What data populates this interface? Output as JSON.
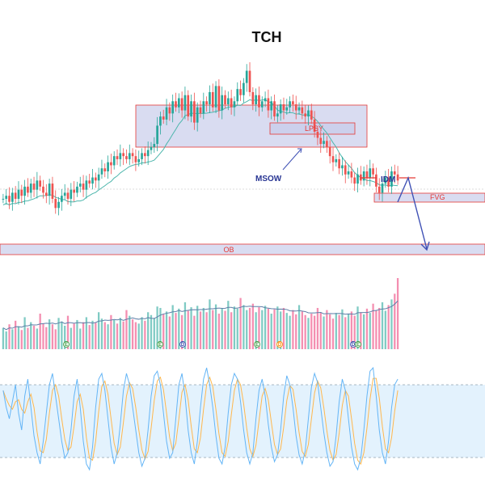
{
  "chart_data": {
    "type": "candlestick",
    "title": "TCH",
    "colors": {
      "up": "#26a69a",
      "down": "#ef5350",
      "ma_line": "#4db6ac",
      "zone_fill": "#c5cae9",
      "zone_border": "#e53935",
      "arrow": "#3f51b5",
      "label_blue": "#283593",
      "label_red": "#e53935",
      "stoch_band": "#e3f2fd",
      "stoch_k": "#64b5f6",
      "stoch_d": "#ffb74d",
      "volume_ma": "#5e7fa8"
    },
    "price_axis_range": [
      0,
      100
    ],
    "closes": [
      58,
      59,
      57,
      60,
      58,
      61,
      59,
      62,
      60,
      63,
      61,
      64,
      62,
      60,
      59,
      63,
      58,
      55,
      57,
      59,
      60,
      58,
      61,
      60,
      62,
      63,
      61,
      64,
      63,
      65,
      64,
      66,
      68,
      67,
      70,
      69,
      72,
      71,
      73,
      72,
      71,
      73,
      72,
      70,
      71,
      73,
      72,
      74,
      75,
      76,
      82,
      85,
      84,
      88,
      86,
      90,
      88,
      91,
      87,
      92,
      85,
      90,
      83,
      88,
      86,
      90,
      89,
      93,
      88,
      95,
      87,
      92,
      89,
      91,
      88,
      90,
      94,
      92,
      96,
      100,
      93,
      89,
      92,
      88,
      90,
      91,
      87,
      90,
      85,
      86,
      89,
      87,
      88,
      90,
      89,
      87,
      88,
      86,
      85,
      87,
      84,
      80,
      78,
      76,
      77,
      75,
      72,
      70,
      71,
      68,
      69,
      66,
      67,
      65,
      63,
      66,
      64,
      67,
      65,
      68,
      66,
      62,
      60,
      63,
      65,
      62,
      67,
      66,
      64
    ],
    "volume": [
      30,
      25,
      35,
      28,
      40,
      32,
      27,
      45,
      30,
      38,
      33,
      29,
      50,
      36,
      31,
      42,
      35,
      28,
      44,
      39,
      33,
      47,
      30,
      36,
      41,
      29,
      38,
      45,
      34,
      40,
      37,
      52,
      43,
      38,
      35,
      48,
      41,
      36,
      44,
      39,
      55,
      47,
      42,
      38,
      36,
      45,
      40,
      52,
      48,
      44,
      60,
      58,
      49,
      53,
      46,
      62,
      51,
      57,
      48,
      66,
      54,
      59,
      47,
      61,
      53,
      58,
      52,
      70,
      55,
      63,
      50,
      58,
      54,
      68,
      52,
      60,
      57,
      72,
      62,
      55,
      58,
      64,
      52,
      59,
      55,
      61,
      57,
      50,
      56,
      60,
      53,
      58,
      51,
      47,
      55,
      49,
      62,
      53,
      48,
      44,
      50,
      47,
      58,
      52,
      46,
      55,
      49,
      43,
      51,
      48,
      56,
      45,
      50,
      53,
      47,
      60,
      52,
      49,
      57,
      51,
      64,
      55,
      58,
      66,
      54,
      62,
      70,
      78,
      100
    ],
    "volume_markers": [
      "E",
      "E",
      "D",
      "E",
      "D",
      "D",
      "E"
    ],
    "stoch_k": [
      75,
      60,
      50,
      65,
      80,
      55,
      40,
      70,
      85,
      60,
      35,
      20,
      10,
      30,
      55,
      80,
      90,
      70,
      50,
      30,
      15,
      20,
      40,
      70,
      85,
      60,
      30,
      10,
      5,
      25,
      60,
      85,
      90,
      75,
      50,
      25,
      10,
      20,
      45,
      75,
      90,
      80,
      60,
      40,
      20,
      8,
      15,
      40,
      70,
      88,
      92,
      80,
      55,
      30,
      15,
      20,
      50,
      80,
      90,
      70,
      40,
      20,
      10,
      30,
      60,
      85,
      95,
      80,
      60,
      35,
      15,
      10,
      25,
      55,
      80,
      90,
      85,
      65,
      40,
      20,
      10,
      20,
      50,
      75,
      85,
      70,
      45,
      25,
      12,
      18,
      40,
      70,
      88,
      80,
      60,
      35,
      18,
      10,
      22,
      50,
      78,
      90,
      82,
      60,
      38,
      20,
      8,
      12,
      35,
      65,
      85,
      75,
      50,
      25,
      10,
      5,
      15,
      40,
      70,
      92,
      95,
      70,
      40,
      20,
      10,
      30,
      60,
      80,
      85
    ],
    "stoch_levels": [
      80,
      20
    ],
    "zones": [
      {
        "label": "LPSY"
      },
      {
        "label": "FVG"
      },
      {
        "label": "OB"
      }
    ],
    "annotations": [
      "MSOW",
      "IDM",
      "LPSY",
      "FVG",
      "OB"
    ]
  }
}
